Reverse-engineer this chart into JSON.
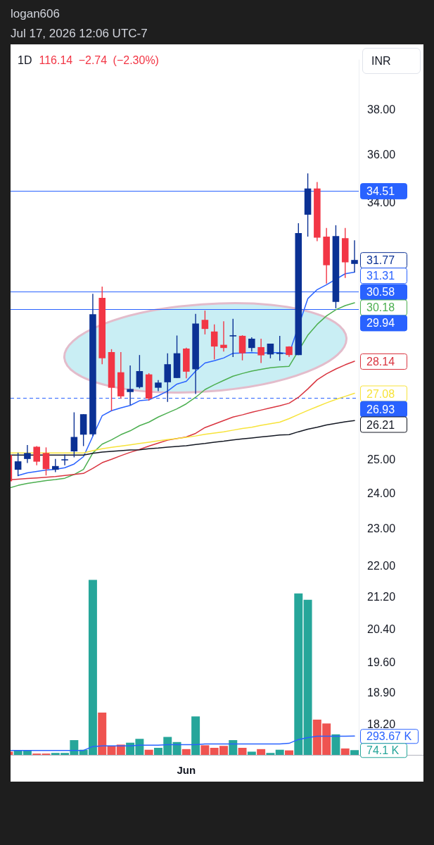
{
  "chart_data": {
    "type": "candlestick",
    "title": "1D",
    "subtitle": "116.14 −2.74 (−2.30%)",
    "ylabel": "INR",
    "annotations": [
      "logan606",
      "Jul 17, 2026 12:06 UTC-7",
      "31.77"
    ],
    "categories": [
      null,
      null,
      null,
      null,
      null,
      null,
      null,
      null,
      null,
      null,
      null,
      null,
      null,
      null,
      null,
      null,
      null,
      null,
      null,
      "Jun",
      null,
      null,
      null,
      null,
      null,
      null,
      null,
      null,
      null,
      null,
      null,
      null,
      null,
      null,
      null,
      null,
      null,
      null
    ],
    "ohlc": [
      [
        25.15,
        25.15,
        24.37,
        24.37
      ],
      [
        24.71,
        25.22,
        24.52,
        24.96
      ],
      [
        25.03,
        25.45,
        24.91,
        25.21
      ],
      [
        25.4,
        25.42,
        24.84,
        24.95
      ],
      [
        25.21,
        25.38,
        24.54,
        24.73
      ],
      [
        24.71,
        25.03,
        24.64,
        24.82
      ],
      [
        25.0,
        25.17,
        24.84,
        25.01
      ],
      [
        25.26,
        26.47,
        25.08,
        25.7
      ],
      [
        25.77,
        26.41,
        25.42,
        26.41
      ],
      [
        25.78,
        30.51,
        25.73,
        29.77
      ],
      [
        30.36,
        30.77,
        28.04,
        28.24
      ],
      [
        28.45,
        28.55,
        26.52,
        27.26
      ],
      [
        27.77,
        28.45,
        26.91,
        26.98
      ],
      [
        27.12,
        28.0,
        26.7,
        27.22
      ],
      [
        27.28,
        28.35,
        27.24,
        27.81
      ],
      [
        27.7,
        27.74,
        26.84,
        26.91
      ],
      [
        27.26,
        27.51,
        27.15,
        27.43
      ],
      [
        27.44,
        28.41,
        26.8,
        28.04
      ],
      [
        27.58,
        29.02,
        27.58,
        28.41
      ],
      [
        28.57,
        28.6,
        27.57,
        27.79
      ],
      [
        27.87,
        29.78,
        27.06,
        29.44
      ],
      [
        29.57,
        29.9,
        29.06,
        29.25
      ],
      [
        29.16,
        29.41,
        28.2,
        28.64
      ],
      [
        28.7,
        29.52,
        28.47,
        28.59
      ],
      [
        29.0,
        29.61,
        28.28,
        29.02
      ],
      [
        29.01,
        29.03,
        28.17,
        28.41
      ],
      [
        28.59,
        28.96,
        28.47,
        28.91
      ],
      [
        28.62,
        28.91,
        28.08,
        28.34
      ],
      [
        28.37,
        28.74,
        28.24,
        28.74
      ],
      [
        28.4,
        29.01,
        28.16,
        28.41
      ],
      [
        28.64,
        28.65,
        28.29,
        28.35
      ],
      [
        28.35,
        33.2,
        28.35,
        32.81
      ],
      [
        33.54,
        35.24,
        32.67,
        34.61
      ],
      [
        34.61,
        34.88,
        32.49,
        32.63
      ],
      [
        32.67,
        33.01,
        30.88,
        31.57
      ],
      [
        30.21,
        33.12,
        29.98,
        32.69
      ],
      [
        32.61,
        33.01,
        31.09,
        31.68
      ],
      [
        31.62,
        32.53,
        31.3,
        31.77
      ]
    ],
    "colors": [
      "#f23645",
      "#0b3194",
      "#0b3194",
      "#f23645",
      "#f23645",
      "#0b3194",
      "#0b3194",
      "#0b3194",
      "#0b3194",
      "#0b3194",
      "#f23645",
      "#f23645",
      "#f23645",
      "#0b3194",
      "#0b3194",
      "#f23645",
      "#0b3194",
      "#0b3194",
      "#0b3194",
      "#f23645",
      "#0b3194",
      "#f23645",
      "#f23645",
      "#f23645",
      "#0b3194",
      "#f23645",
      "#0b3194",
      "#f23645",
      "#0b3194",
      "#0b3194",
      "#f23645",
      "#0b3194",
      "#0b3194",
      "#f23645",
      "#f23645",
      "#0b3194",
      "#f23645",
      "#0b3194"
    ],
    "series": [
      {
        "type": "bar",
        "axis": "y2",
        "colors": [
          "#ef5350",
          "#26a69a",
          "#26a69a",
          "#ef5350",
          "#ef5350",
          "#26a69a",
          "#26a69a",
          "#26a69a",
          "#26a69a",
          "#26a69a",
          "#ef5350",
          "#ef5350",
          "#ef5350",
          "#26a69a",
          "#26a69a",
          "#ef5350",
          "#26a69a",
          "#26a69a",
          "#26a69a",
          "#ef5350",
          "#26a69a",
          "#ef5350",
          "#ef5350",
          "#ef5350",
          "#26a69a",
          "#ef5350",
          "#26a69a",
          "#ef5350",
          "#26a69a",
          "#26a69a",
          "#ef5350",
          "#26a69a",
          "#26a69a",
          "#ef5350",
          "#ef5350",
          "#26a69a",
          "#ef5350",
          "#26a69a"
        ],
        "values": [
          50,
          70,
          70,
          20,
          20,
          30,
          30,
          230,
          80,
          2730,
          660,
          140,
          160,
          190,
          250,
          80,
          110,
          280,
          200,
          90,
          600,
          150,
          110,
          140,
          230,
          110,
          50,
          90,
          30,
          80,
          70,
          2520,
          2420,
          550,
          490,
          320,
          100,
          74.1
        ]
      },
      {
        "type": "line",
        "axis": "y2",
        "color": "#2962ff",
        "values": [
          70,
          70,
          70,
          70,
          70,
          70,
          70,
          70,
          70,
          130,
          140,
          140,
          140,
          140,
          150,
          150,
          150,
          160,
          160,
          160,
          160,
          170,
          170,
          170,
          170,
          170,
          170,
          170,
          170,
          170,
          180,
          240,
          270,
          290,
          290,
          290,
          290,
          293.67
        ]
      },
      {
        "type": "line",
        "color": "#131722",
        "values": [
          25.15,
          25.15,
          null,
          null,
          null,
          25.15,
          25.15,
          25.15,
          25.15,
          25.2,
          25.24,
          25.26,
          25.28,
          25.3,
          25.31,
          25.34,
          25.36,
          25.39,
          25.41,
          25.43,
          25.47,
          25.5,
          25.54,
          25.57,
          25.61,
          25.64,
          25.67,
          25.7,
          25.73,
          25.76,
          25.77,
          25.86,
          25.94,
          26.0,
          26.07,
          26.12,
          26.17,
          26.21
        ],
        "value_labels": [
          null,
          null,
          null,
          null,
          null,
          null,
          null,
          null,
          null,
          null,
          null,
          null,
          null,
          null,
          null,
          null,
          null,
          null,
          null,
          null,
          null,
          null,
          null,
          null,
          null,
          null,
          null,
          null,
          null,
          null,
          null,
          null,
          null,
          null,
          null,
          null,
          null,
          "26.21"
        ]
      },
      {
        "type": "line",
        "color": "#f7e33a",
        "values": [
          25.21,
          25.21,
          null,
          null,
          null,
          25.21,
          25.21,
          25.21,
          25.21,
          25.28,
          25.34,
          25.38,
          25.42,
          25.46,
          25.5,
          25.54,
          25.58,
          25.62,
          25.65,
          25.69,
          25.73,
          25.78,
          25.82,
          25.86,
          25.91,
          25.96,
          26.0,
          26.06,
          26.11,
          26.16,
          26.27,
          26.4,
          26.53,
          26.65,
          26.77,
          26.88,
          26.98,
          27.08
        ],
        "value_labels": [
          null,
          null,
          null,
          null,
          null,
          null,
          null,
          null,
          null,
          null,
          null,
          null,
          null,
          null,
          null,
          null,
          null,
          null,
          null,
          null,
          null,
          null,
          null,
          null,
          null,
          null,
          null,
          null,
          null,
          null,
          null,
          null,
          null,
          null,
          null,
          null,
          null,
          "27.08"
        ]
      },
      {
        "type": "line",
        "color": "#d9343f",
        "values": [
          24.41,
          24.43,
          24.45,
          24.47,
          24.49,
          24.51,
          24.54,
          24.57,
          24.6,
          24.75,
          24.92,
          25.02,
          25.13,
          25.23,
          25.32,
          25.42,
          25.51,
          25.6,
          25.65,
          25.7,
          25.81,
          25.99,
          26.1,
          26.21,
          26.32,
          26.39,
          26.47,
          26.54,
          26.61,
          26.68,
          26.76,
          26.95,
          27.22,
          27.52,
          27.72,
          27.88,
          28.02,
          28.14
        ],
        "value_labels": [
          null,
          null,
          null,
          null,
          null,
          null,
          null,
          null,
          null,
          null,
          null,
          null,
          null,
          null,
          null,
          null,
          null,
          null,
          null,
          null,
          null,
          null,
          null,
          null,
          null,
          null,
          null,
          null,
          null,
          null,
          null,
          null,
          null,
          null,
          null,
          null,
          null,
          "28.14"
        ]
      },
      {
        "type": "line",
        "color": "#4caf50",
        "values": [
          24.17,
          24.25,
          24.31,
          24.35,
          24.39,
          24.42,
          24.46,
          24.57,
          24.72,
          25.21,
          25.48,
          25.61,
          25.77,
          25.89,
          26.05,
          26.16,
          26.32,
          26.45,
          26.58,
          26.74,
          26.95,
          27.2,
          27.36,
          27.5,
          27.64,
          27.73,
          27.81,
          27.87,
          27.92,
          27.95,
          27.97,
          null,
          29.03,
          29.41,
          29.71,
          29.93,
          30.08,
          30.18
        ],
        "value_labels": [
          null,
          null,
          null,
          null,
          null,
          null,
          null,
          null,
          null,
          null,
          null,
          null,
          null,
          null,
          null,
          null,
          null,
          null,
          null,
          null,
          null,
          null,
          null,
          null,
          null,
          null,
          null,
          null,
          null,
          null,
          null,
          null,
          null,
          null,
          null,
          null,
          null,
          "30.18"
        ]
      },
      {
        "type": "line",
        "color": "#2962ff",
        "values": [
          null,
          24.54,
          24.62,
          24.66,
          24.7,
          24.72,
          24.77,
          24.88,
          25.1,
          null,
          26.36,
          26.52,
          26.61,
          26.69,
          26.84,
          26.87,
          27.0,
          27.15,
          27.38,
          27.47,
          27.81,
          28.08,
          28.16,
          28.25,
          28.41,
          null,
          28.43,
          28.41,
          28.43,
          28.43,
          28.39,
          null,
          30.33,
          30.66,
          30.84,
          null,
          31.25,
          31.31
        ],
        "value_labels": [
          null,
          null,
          null,
          null,
          null,
          null,
          null,
          null,
          null,
          null,
          null,
          null,
          null,
          null,
          null,
          null,
          null,
          null,
          null,
          null,
          null,
          null,
          null,
          null,
          null,
          null,
          null,
          null,
          null,
          null,
          null,
          null,
          null,
          null,
          null,
          null,
          null,
          "31.31"
        ]
      }
    ],
    "log": "y",
    "ylim": [
      17.56,
      40.39
    ],
    "yticks": [
      {
        "value": 38,
        "label": "38.00"
      },
      {
        "value": 36,
        "label": "36.00"
      },
      {
        "value": 34,
        "label": "34.00"
      },
      {
        "value": 25,
        "label": "25.00"
      },
      {
        "value": 24,
        "label": "24.00"
      },
      {
        "value": 23,
        "label": "23.00"
      },
      {
        "value": 22,
        "label": "22.00"
      },
      {
        "value": 21.2,
        "label": "21.20"
      },
      {
        "value": 20.4,
        "label": "20.40"
      },
      {
        "value": 19.6,
        "label": "19.60"
      },
      {
        "value": 18.9,
        "label": "18.90"
      },
      {
        "value": 18.2,
        "label": "18.20"
      }
    ],
    "y2lim": [
      0,
      10850
    ],
    "y2ticks": [
      {
        "value": 293.67,
        "label": "293.67 K"
      },
      {
        "value": 74.1,
        "label": "74.1 K"
      }
    ],
    "ref_lines": [
      {
        "axis": "y",
        "value": 34.51,
        "label": "34.51",
        "color": "#2962ff"
      },
      {
        "axis": "y",
        "value": 30.58,
        "label": "30.58",
        "color": "#2962ff"
      },
      {
        "axis": "y",
        "value": 29.94,
        "label": "29.94",
        "color": "#2962ff"
      },
      {
        "axis": "y",
        "value": 26.93,
        "label": "26.93",
        "color": "#2962ff",
        "line_style": "dashed"
      }
    ],
    "grid": false,
    "legend": false,
    "marker": "none"
  }
}
